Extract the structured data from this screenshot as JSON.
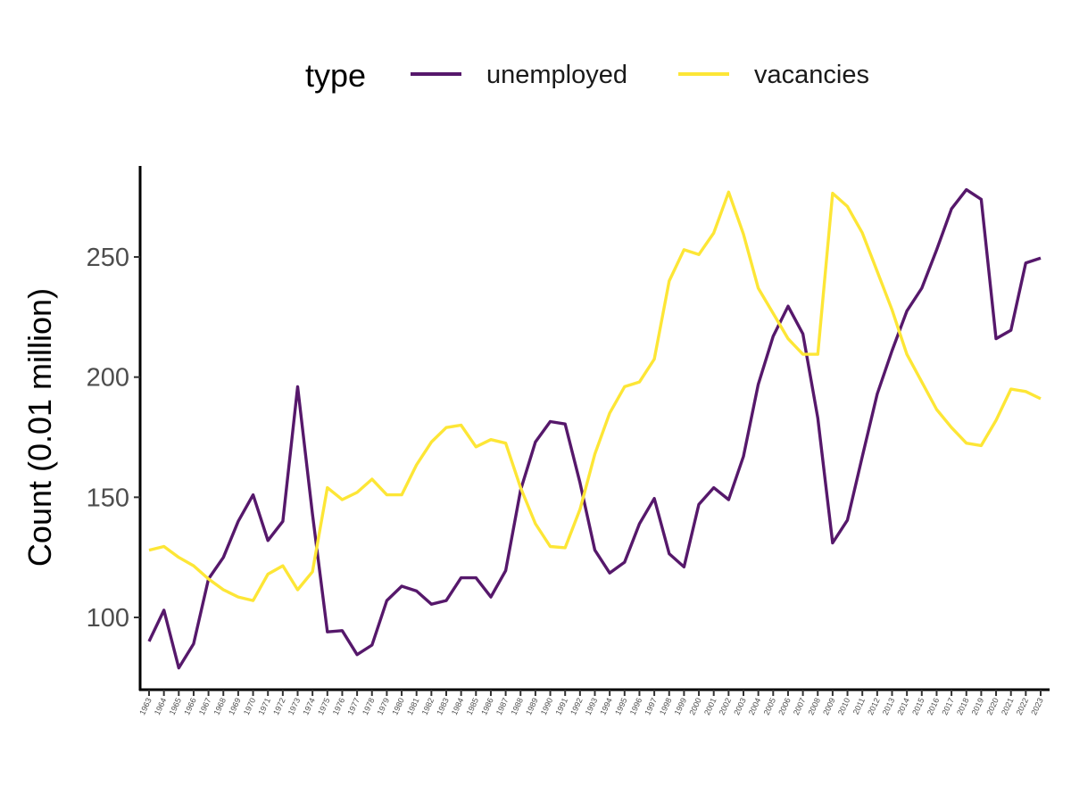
{
  "chart_data": {
    "type": "line",
    "xlabel": "",
    "ylabel": "Count (0.01 million)",
    "ylim": [
      70,
      288
    ],
    "yticks": [
      100,
      150,
      200,
      250
    ],
    "legend": {
      "title": "type",
      "position": "top"
    },
    "grid": false,
    "x": [
      1963,
      1964,
      1965,
      1966,
      1967,
      1968,
      1969,
      1970,
      1971,
      1972,
      1973,
      1974,
      1975,
      1976,
      1977,
      1978,
      1979,
      1980,
      1981,
      1982,
      1983,
      1984,
      1985,
      1986,
      1987,
      1988,
      1989,
      1990,
      1991,
      1992,
      1993,
      1994,
      1995,
      1996,
      1997,
      1998,
      1999,
      2000,
      2001,
      2002,
      2003,
      2004,
      2005,
      2006,
      2007,
      2008,
      2009,
      2010,
      2011,
      2012,
      2013,
      2014,
      2015,
      2016,
      2017,
      2018,
      2019,
      2020,
      2021,
      2022,
      2023
    ],
    "series": [
      {
        "name": "unemployed",
        "color": "#56186b",
        "values": [
          90,
          103,
          79,
          89,
          116,
          125,
          140,
          151,
          132,
          140,
          196,
          143,
          94,
          94.5,
          84.5,
          88.5,
          107,
          113,
          111,
          105.5,
          107,
          116.5,
          116.5,
          108.5,
          119.5,
          153,
          173,
          181.5,
          180.5,
          156,
          128,
          118.5,
          123,
          139,
          149.5,
          126.5,
          121,
          147,
          154,
          149,
          167,
          197,
          217,
          229.5,
          218,
          183,
          131,
          140.5,
          167,
          193,
          211,
          227.5,
          237,
          253,
          270,
          278,
          274,
          216,
          219.5,
          247.5,
          249.5
        ]
      },
      {
        "name": "vacancies",
        "color": "#fde636",
        "values": [
          128,
          129.5,
          125,
          121.5,
          116,
          111.5,
          108.5,
          107,
          118,
          121.5,
          111.5,
          119,
          154,
          149,
          152,
          157.5,
          151,
          151,
          163.5,
          173,
          179,
          180,
          171,
          174,
          172.5,
          154,
          139,
          129.5,
          129,
          145,
          168,
          185,
          196,
          198,
          207.5,
          240,
          253,
          251,
          260,
          277,
          259.5,
          237,
          226.5,
          216,
          209.5,
          209.5,
          276.5,
          271,
          260,
          244,
          228,
          209.5,
          198,
          186.5,
          179,
          172.5,
          171.5,
          182,
          195,
          194,
          191
        ]
      }
    ]
  }
}
